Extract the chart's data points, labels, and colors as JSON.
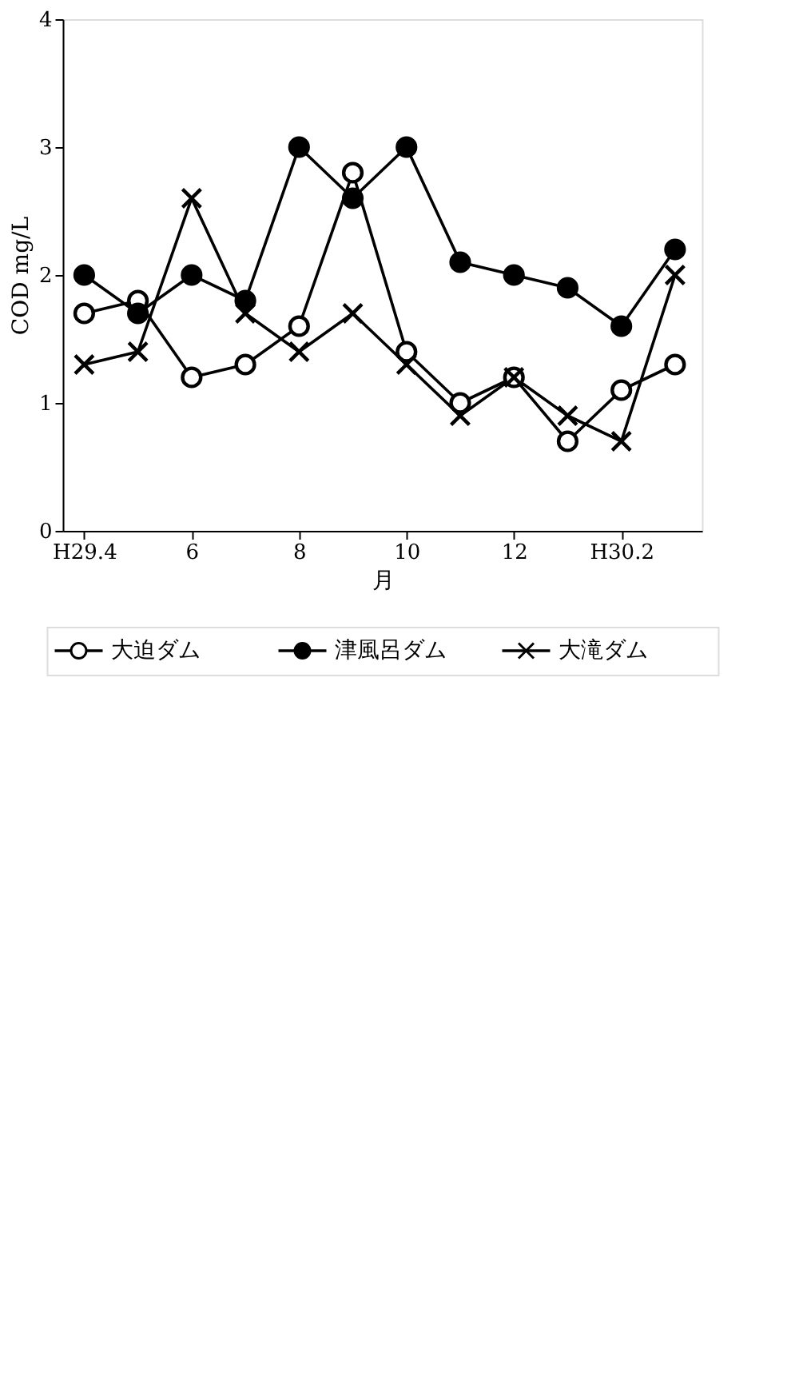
{
  "chart_data": {
    "type": "line",
    "xlabel": "月",
    "ylabel": "COD mg/L",
    "x": [
      4,
      5,
      6,
      7,
      8,
      9,
      10,
      11,
      12,
      13,
      14,
      15
    ],
    "xlim": [
      3.6,
      15.5
    ],
    "xticks": [
      {
        "value": 4,
        "label": "H29.4"
      },
      6,
      8,
      10,
      12,
      {
        "value": 14,
        "label": "H30.2"
      }
    ],
    "ylim": [
      0,
      4
    ],
    "yticks": [
      0,
      1,
      2,
      3,
      4
    ],
    "grid": false,
    "legend": "bottom",
    "line_style": "solid",
    "series": [
      {
        "name": "大迫ダム",
        "color": "#000000",
        "marker": "circle",
        "values": [
          1.7,
          1.8,
          1.2,
          1.3,
          1.6,
          2.8,
          1.4,
          1.0,
          1.2,
          0.7,
          1.1,
          1.3
        ]
      },
      {
        "name": "津風呂ダム",
        "color": "#000000",
        "marker": "circle",
        "values": [
          2.0,
          1.7,
          2.0,
          1.8,
          3.0,
          2.6,
          3.0,
          2.1,
          2.0,
          1.9,
          1.6,
          2.2
        ]
      },
      {
        "name": "大滝ダム",
        "color": "#000000",
        "marker": "cross",
        "values": [
          1.3,
          1.4,
          2.6,
          1.7,
          1.4,
          1.7,
          1.3,
          0.9,
          1.2,
          0.9,
          0.7,
          2.0
        ]
      }
    ]
  }
}
